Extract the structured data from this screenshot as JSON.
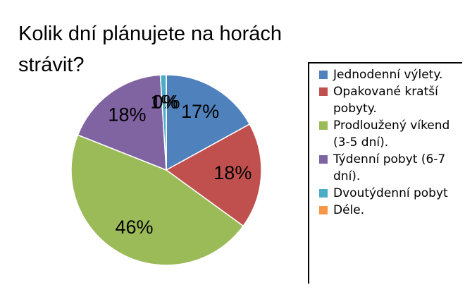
{
  "chart_data": {
    "type": "pie",
    "title": "Kolik dní plánujete na horách strávit?",
    "categories": [
      "Jednodenní výlety.",
      "Opakované kratší pobyty.",
      "Prodloužený víkend (3-5 dní).",
      "Týdenní pobyt (6-7 dní).",
      "Dvoutýdenní pobyt",
      "Déle."
    ],
    "values": [
      17,
      18,
      46,
      18,
      1,
      0
    ],
    "value_labels": [
      "17%",
      "18%",
      "46%",
      "18%",
      "1%",
      "0%"
    ],
    "colors": [
      "#4f81bd",
      "#c0504d",
      "#9bbb59",
      "#8064a2",
      "#4bacc6",
      "#f79646"
    ],
    "legend": "right"
  }
}
